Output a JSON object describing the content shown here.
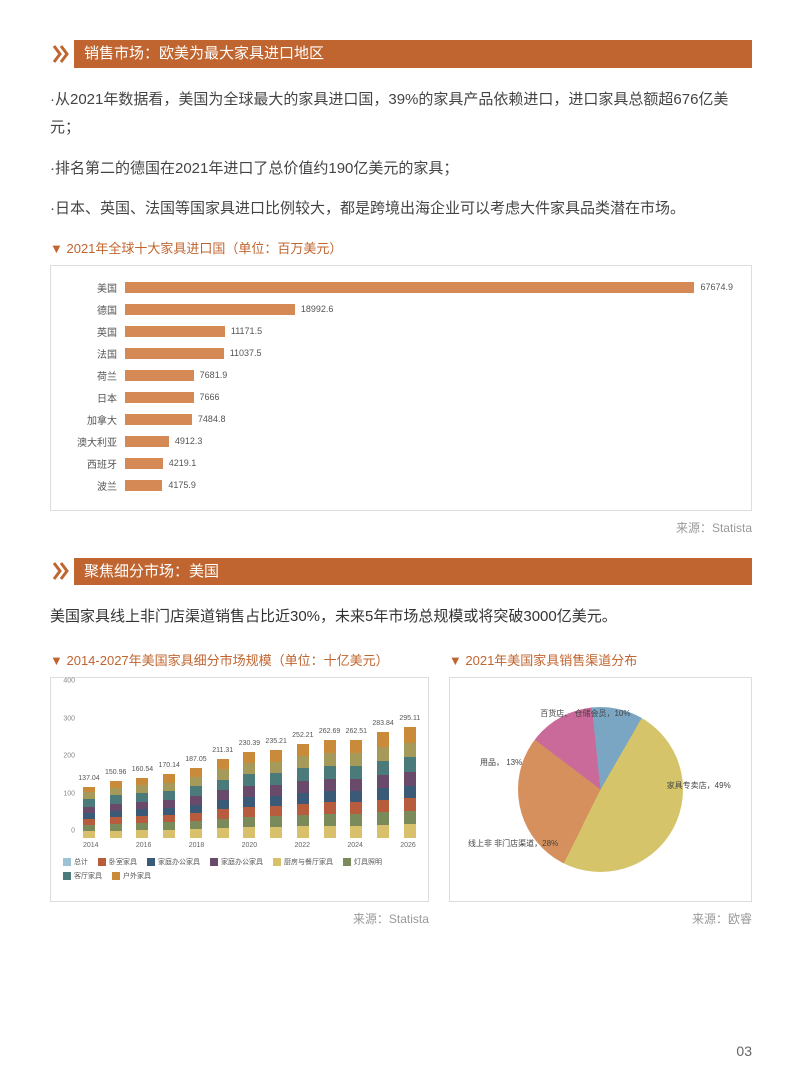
{
  "accent_color": "#c0652f",
  "section1": {
    "title": "销售市场：欧美为最大家具进口地区",
    "bullets": [
      "·从2021年数据看，美国为全球最大的家具进口国，39%的家具产品依赖进口，进口家具总额超676亿美元；",
      "·排名第二的德国在2021年进口了总价值约190亿美元的家具；",
      "·日本、英国、法国等国家具进口比例较大，都是跨境出海企业可以考虑大件家具品类潜在市场。"
    ],
    "chart_title": "2021年全球十大家具进口国（单位：百万美元）",
    "bar_chart": {
      "type": "horizontal-bar",
      "bar_color": "#d58a56",
      "max": 68000,
      "items": [
        {
          "label": "美国",
          "value": 67674.9
        },
        {
          "label": "德国",
          "value": 18992.6
        },
        {
          "label": "英国",
          "value": 11171.5
        },
        {
          "label": "法国",
          "value": 11037.5
        },
        {
          "label": "荷兰",
          "value": 7681.9
        },
        {
          "label": "日本",
          "value": 7666
        },
        {
          "label": "加拿大",
          "value": 7484.8
        },
        {
          "label": "澳大利亚",
          "value": 4912.3
        },
        {
          "label": "西班牙",
          "value": 4219.1
        },
        {
          "label": "波兰",
          "value": 4175.9
        }
      ]
    },
    "source": "来源：Statista"
  },
  "section2": {
    "title": "聚焦细分市场：美国",
    "lead": "美国家具线上非门店渠道销售占比近30%，未来5年市场总规模或将突破3000亿美元。",
    "left_chart_title": "2014-2027年美国家具细分市场规模（单位：十亿美元）",
    "right_chart_title": "2021年美国家具销售渠道分布",
    "stacked": {
      "type": "stacked-bar",
      "ylim": [
        0,
        400
      ],
      "yticks": [
        0,
        100,
        200,
        300,
        400
      ],
      "years": [
        "2014",
        "2016",
        "2018",
        "2020",
        "2022",
        "2024",
        "2026"
      ],
      "totals": [
        "137.04",
        "150.96",
        "160.54",
        "170.14",
        "187.05",
        "211.31",
        "230.39",
        "235.21",
        "252.21",
        "262.69",
        "262.51",
        "283.84",
        "295.11"
      ],
      "segment_colors": [
        "#d9c06a",
        "#7a8a5a",
        "#b85c3e",
        "#3a5a78",
        "#6a4a6a",
        "#4a7a7a",
        "#a69a5a",
        "#c98a3a"
      ],
      "segments_per_bar": [
        [
          18,
          16,
          16,
          16,
          18,
          20,
          18,
          15
        ],
        [
          20,
          18,
          18,
          17,
          19,
          22,
          20,
          17
        ],
        [
          21,
          19,
          19,
          18,
          20,
          23,
          21,
          19
        ],
        [
          22,
          20,
          20,
          19,
          21,
          24,
          22,
          22
        ],
        [
          24,
          22,
          22,
          21,
          23,
          26,
          24,
          25
        ],
        [
          27,
          25,
          25,
          24,
          26,
          29,
          27,
          28
        ],
        [
          30,
          27,
          27,
          26,
          28,
          32,
          30,
          30
        ],
        [
          30,
          28,
          28,
          27,
          29,
          32,
          30,
          31
        ],
        [
          32,
          30,
          30,
          29,
          31,
          34,
          32,
          34
        ],
        [
          33,
          31,
          31,
          30,
          32,
          36,
          34,
          35
        ],
        [
          33,
          31,
          31,
          30,
          32,
          36,
          34,
          35
        ],
        [
          36,
          33,
          33,
          32,
          34,
          38,
          37,
          40
        ],
        [
          37,
          35,
          35,
          33,
          36,
          40,
          38,
          41
        ]
      ],
      "legend": [
        {
          "color": "#9cc4d4",
          "label": "总计"
        },
        {
          "color": "#b85c3e",
          "label": "卧室家具"
        },
        {
          "color": "#3a5a78",
          "label": "家庭办公家具"
        },
        {
          "color": "#6a4a6a",
          "label": "家庭办公家具"
        },
        {
          "color": "#d9c06a",
          "label": "厨房与餐厅家具"
        },
        {
          "color": "#7a8a5a",
          "label": "灯具照明"
        },
        {
          "color": "#4a7a7a",
          "label": "客厅家具"
        },
        {
          "color": "#c98a3a",
          "label": "户外家具"
        }
      ]
    },
    "pie": {
      "type": "pie",
      "slices": [
        {
          "label": "家具专卖店，49%",
          "value": 49,
          "color": "#d6c46a"
        },
        {
          "label": "线上非\n非门店渠道，28%",
          "value": 28,
          "color": "#d5905e"
        },
        {
          "label": "用品，\n13%",
          "value": 13,
          "color": "#c96a9a"
        },
        {
          "label": "百货店、\n仓储会员，10%",
          "value": 10,
          "color": "#7aa6c4"
        }
      ]
    },
    "source_left": "来源：Statista",
    "source_right": "来源：欧睿"
  },
  "page_number": "03"
}
